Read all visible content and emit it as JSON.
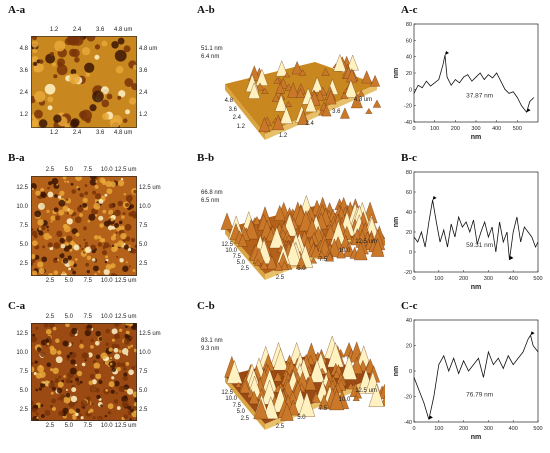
{
  "rows": [
    {
      "id": "A",
      "label_a": "A-a",
      "label_b": "A-b",
      "label_c": "A-c",
      "img_ticks_top": [
        "1.2",
        "2.4",
        "3.6",
        "4.8 um"
      ],
      "img_ticks_bottom": [
        "1.2",
        "2.4",
        "3.6",
        "4.8 um"
      ],
      "img_ticks_left": [
        "4.8",
        "3.6",
        "2.4",
        "1.2"
      ],
      "img_ticks_right": [
        "4.8 um",
        "3.6",
        "2.4",
        "1.2"
      ],
      "surface_z_labels": [
        "51.1 nm",
        "6.4 nm"
      ],
      "surface_y_ticks": [
        "4.8",
        "3.6",
        "2.4",
        "1.2"
      ],
      "surface_x_ticks": [
        "1.2",
        "2.4",
        "3.6",
        "4.8 um"
      ],
      "base_color": "#c8881f"
    },
    {
      "id": "B",
      "label_a": "B-a",
      "label_b": "B-b",
      "label_c": "B-c",
      "img_ticks_top": [
        "2.5",
        "5.0",
        "7.5",
        "10.0",
        "12.5 um"
      ],
      "img_ticks_bottom": [
        "2.5",
        "5.0",
        "7.5",
        "10.0",
        "12.5 um"
      ],
      "img_ticks_left": [
        "12.5",
        "10.0",
        "7.5",
        "5.0",
        "2.5"
      ],
      "img_ticks_right": [
        "12.5 um",
        "10.0",
        "7.5",
        "5.0",
        "2.5"
      ],
      "surface_z_labels": [
        "66.8 nm",
        "6.5 nm"
      ],
      "surface_y_ticks": [
        "12.5",
        "10.0",
        "7.5",
        "5.0",
        "2.5"
      ],
      "surface_x_ticks": [
        "2.5",
        "5.0",
        "7.5",
        "10.0",
        "12.5 um"
      ],
      "base_color": "#b4611a"
    },
    {
      "id": "C",
      "label_a": "C-a",
      "label_b": "C-b",
      "label_c": "C-c",
      "img_ticks_top": [
        "2.5",
        "5.0",
        "7.5",
        "10.0",
        "12.5 um"
      ],
      "img_ticks_bottom": [
        "2.5",
        "5.0",
        "7.5",
        "10.0",
        "12.5 um"
      ],
      "img_ticks_left": [
        "12.5",
        "10.0",
        "7.5",
        "5.0",
        "2.5"
      ],
      "img_ticks_right": [
        "12.5 um",
        "10.0",
        "7.5",
        "5.0",
        "2.5"
      ],
      "surface_z_labels": [
        "83.1 nm",
        "9.3 nm"
      ],
      "surface_y_ticks": [
        "12.5",
        "10.0",
        "7.5",
        "5.0",
        "2.5"
      ],
      "surface_x_ticks": [
        "2.5",
        "5.0",
        "7.5",
        "10.0",
        "12.5 um"
      ],
      "base_color": "#9a4a12"
    }
  ],
  "chart_data": [
    {
      "type": "line",
      "xlabel": "nm",
      "ylabel": "nm",
      "xlim": [
        0,
        600
      ],
      "ylim": [
        -40,
        80
      ],
      "xticks": [
        0,
        100,
        200,
        300,
        400,
        500
      ],
      "yticks": [
        -40,
        -20,
        0,
        20,
        40,
        60,
        80
      ],
      "annotation": "37.87 nm",
      "markers": [
        [
          150,
          42
        ],
        [
          545,
          -28
        ]
      ],
      "x": [
        0,
        20,
        40,
        60,
        80,
        100,
        120,
        140,
        150,
        160,
        180,
        200,
        220,
        240,
        260,
        280,
        300,
        320,
        340,
        360,
        380,
        400,
        420,
        440,
        460,
        480,
        500,
        520,
        545,
        560,
        580
      ],
      "y": [
        -5,
        5,
        2,
        10,
        4,
        8,
        12,
        30,
        42,
        15,
        5,
        12,
        8,
        15,
        18,
        10,
        15,
        20,
        12,
        18,
        14,
        20,
        10,
        0,
        -5,
        -3,
        -10,
        -20,
        -28,
        -15,
        -10
      ]
    },
    {
      "type": "line",
      "xlabel": "nm",
      "ylabel": "nm",
      "xlim": [
        0,
        500
      ],
      "ylim": [
        -20,
        80
      ],
      "xticks": [
        0,
        100,
        200,
        300,
        400,
        500
      ],
      "yticks": [
        -20,
        0,
        20,
        40,
        60,
        80
      ],
      "annotation": "59.31 nm",
      "markers": [
        [
          75,
          52
        ],
        [
          385,
          -8
        ]
      ],
      "x": [
        0,
        15,
        30,
        45,
        60,
        75,
        90,
        105,
        120,
        135,
        150,
        165,
        180,
        195,
        210,
        225,
        240,
        255,
        270,
        285,
        300,
        315,
        330,
        345,
        360,
        375,
        385,
        400,
        415,
        430,
        445,
        460,
        475,
        490,
        500
      ],
      "y": [
        15,
        10,
        20,
        5,
        30,
        52,
        30,
        10,
        22,
        5,
        28,
        15,
        35,
        25,
        30,
        20,
        32,
        8,
        20,
        30,
        15,
        25,
        0,
        30,
        10,
        20,
        -8,
        20,
        35,
        10,
        25,
        20,
        15,
        5,
        10
      ]
    },
    {
      "type": "line",
      "xlabel": "nm",
      "ylabel": "nm",
      "xlim": [
        0,
        500
      ],
      "ylim": [
        -40,
        40
      ],
      "xticks": [
        0,
        100,
        200,
        300,
        400,
        500
      ],
      "yticks": [
        -40,
        -20,
        0,
        20,
        40
      ],
      "annotation": "76.79 nm",
      "markers": [
        [
          60,
          -38
        ],
        [
          470,
          28
        ]
      ],
      "x": [
        0,
        20,
        40,
        60,
        80,
        100,
        120,
        140,
        160,
        180,
        200,
        220,
        240,
        260,
        280,
        300,
        320,
        340,
        360,
        380,
        400,
        420,
        440,
        460,
        470,
        480,
        500
      ],
      "y": [
        -5,
        -15,
        -25,
        -38,
        -20,
        5,
        12,
        0,
        10,
        -2,
        8,
        0,
        5,
        10,
        -5,
        15,
        5,
        10,
        2,
        12,
        5,
        10,
        15,
        25,
        28,
        20,
        15
      ]
    }
  ]
}
